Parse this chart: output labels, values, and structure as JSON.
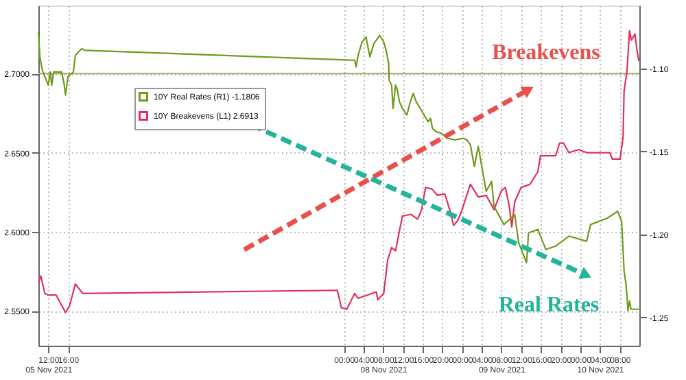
{
  "chart_data": {
    "type": "line",
    "xlim": [
      "2021-11-05T10:00",
      "2021-11-10T12:00"
    ],
    "xticks": [
      {
        "value": "2021-11-05T12:00",
        "label": "12:00\n05 Nov 2021"
      },
      {
        "value": "2021-11-05T16:00",
        "label": "16:00"
      },
      {
        "value": "2021-11-08T00:00",
        "label": "00:00"
      },
      {
        "value": "2021-11-08T04:00",
        "label": "04:00"
      },
      {
        "value": "2021-11-08T08:00",
        "label": "08:00\n08 Nov 2021"
      },
      {
        "value": "2021-11-08T12:00",
        "label": "12:00"
      },
      {
        "value": "2021-11-08T16:00",
        "label": "16:00"
      },
      {
        "value": "2021-11-08T20:00",
        "label": "20:00"
      },
      {
        "value": "2021-11-09T00:00",
        "label": "00:00"
      },
      {
        "value": "2021-11-09T04:00",
        "label": "04:00"
      },
      {
        "value": "2021-11-09T08:00",
        "label": "08:00\n09 Nov 2021"
      },
      {
        "value": "2021-11-09T12:00",
        "label": "12:00"
      },
      {
        "value": "2021-11-09T16:00",
        "label": "16:00"
      },
      {
        "value": "2021-11-09T20:00",
        "label": "20:00"
      },
      {
        "value": "2021-11-10T00:00",
        "label": "00:00"
      },
      {
        "value": "2021-11-10T04:00",
        "label": "04:00\n10 Nov 2021"
      },
      {
        "value": "2021-11-10T08:00",
        "label": "08:00"
      }
    ],
    "ylim": [
      2.528,
      2.743
    ],
    "yticks": [
      {
        "value": 2.55,
        "label": "2.5500"
      },
      {
        "value": 2.6,
        "label": "2.6000"
      },
      {
        "value": 2.65,
        "label": "2.6500"
      },
      {
        "value": 2.7,
        "label": "2.7000"
      }
    ],
    "y2lim": [
      -1.267,
      -1.062
    ],
    "y2ticks": [
      {
        "value": -1.25,
        "label": "-1.25"
      },
      {
        "value": -1.2,
        "label": "-1.20"
      },
      {
        "value": -1.15,
        "label": "-1.15"
      },
      {
        "value": -1.1,
        "label": "-1.10"
      }
    ],
    "grid": true,
    "legend": "top",
    "line_style": "solid",
    "marker": "none",
    "ref_lines": [
      {
        "axis": "y",
        "value": 2.7,
        "color": "#a8a860",
        "line_style": "solid"
      }
    ],
    "annotations": [
      "Breakevens",
      "Real Rates"
    ],
    "series": [
      {
        "name": "10Y Real Rates (R1) -1.1806",
        "color": "#6f9a1c",
        "axis": "y2",
        "x": [
          "2021-11-05T10:00",
          "2021-11-05T10:18",
          "2021-11-05T10:48",
          "2021-11-05T11:36",
          "2021-11-05T12:00",
          "2021-11-05T12:24",
          "2021-11-05T12:42",
          "2021-11-05T13:06",
          "2021-11-05T14:42",
          "2021-11-05T15:12",
          "2021-11-05T15:30",
          "2021-11-05T16:00",
          "2021-11-05T17:06",
          "2021-11-05T17:30",
          "2021-11-05T18:48",
          "2021-11-05T19:24",
          "2021-11-08T02:12",
          "2021-11-08T02:30",
          "2021-11-08T02:54",
          "2021-11-08T03:42",
          "2021-11-08T04:30",
          "2021-11-08T05:18",
          "2021-11-08T06:06",
          "2021-11-08T07:18",
          "2021-11-08T08:06",
          "2021-11-08T08:36",
          "2021-11-08T09:06",
          "2021-11-08T09:12",
          "2021-11-08T09:42",
          "2021-11-08T10:00",
          "2021-11-08T10:30",
          "2021-11-08T10:48",
          "2021-11-08T11:18",
          "2021-11-08T11:54",
          "2021-11-08T12:48",
          "2021-11-08T13:30",
          "2021-11-08T14:06",
          "2021-11-08T14:42",
          "2021-11-08T15:30",
          "2021-11-08T16:18",
          "2021-11-08T17:06",
          "2021-11-08T17:36",
          "2021-11-08T18:00",
          "2021-11-08T18:42",
          "2021-11-08T19:48",
          "2021-11-08T21:00",
          "2021-11-08T22:36",
          "2021-11-09T00:12",
          "2021-11-09T01:00",
          "2021-11-09T01:42",
          "2021-11-09T02:30",
          "2021-11-09T03:18",
          "2021-11-09T04:54",
          "2021-11-09T06:00",
          "2021-11-09T06:30",
          "2021-11-09T08:30",
          "2021-11-09T10:42",
          "2021-11-09T11:30",
          "2021-11-09T13:06",
          "2021-11-09T13:30",
          "2021-11-09T15:24",
          "2021-11-09T17:00",
          "2021-11-09T19:00",
          "2021-11-09T21:42",
          "2021-11-10T01:18",
          "2021-11-10T02:06",
          "2021-11-10T05:36",
          "2021-11-10T07:36",
          "2021-11-10T08:24",
          "2021-11-10T08:54",
          "2021-11-10T09:18",
          "2021-11-10T09:42",
          "2021-11-10T10:00",
          "2021-11-10T10:18",
          "2021-11-10T11:54"
        ],
        "values": [
          -1.078,
          -1.093,
          -1.101,
          -1.107,
          -1.11,
          -1.102,
          -1.11,
          -1.102,
          -1.102,
          -1.109,
          -1.116,
          -1.105,
          -1.102,
          -1.092,
          -1.088,
          -1.089,
          -1.095,
          -1.099,
          -1.092,
          -1.084,
          -1.081,
          -1.093,
          -1.085,
          -1.08,
          -1.084,
          -1.089,
          -1.097,
          -1.107,
          -1.11,
          -1.124,
          -1.11,
          -1.112,
          -1.12,
          -1.124,
          -1.128,
          -1.12,
          -1.115,
          -1.12,
          -1.124,
          -1.128,
          -1.132,
          -1.13,
          -1.136,
          -1.138,
          -1.139,
          -1.142,
          -1.143,
          -1.142,
          -1.143,
          -1.146,
          -1.159,
          -1.147,
          -1.174,
          -1.168,
          -1.183,
          -1.194,
          -1.188,
          -1.205,
          -1.217,
          -1.199,
          -1.197,
          -1.209,
          -1.207,
          -1.201,
          -1.204,
          -1.194,
          -1.19,
          -1.186,
          -1.192,
          -1.222,
          -1.23,
          -1.246,
          -1.24,
          -1.245,
          -1.245
        ]
      },
      {
        "name": "10Y Breakevens (L1) 2.6913",
        "color": "#e0305a",
        "axis": "y",
        "x": [
          "2021-11-05T10:00",
          "2021-11-05T10:30",
          "2021-11-05T11:18",
          "2021-11-05T12:00",
          "2021-11-05T13:36",
          "2021-11-05T15:30",
          "2021-11-05T16:18",
          "2021-11-05T17:30",
          "2021-11-05T19:00",
          "2021-11-07T22:42",
          "2021-11-07T23:30",
          "2021-11-08T00:36",
          "2021-11-08T02:12",
          "2021-11-08T02:54",
          "2021-11-08T04:48",
          "2021-11-08T06:36",
          "2021-11-08T06:54",
          "2021-11-08T08:06",
          "2021-11-08T08:54",
          "2021-11-08T09:42",
          "2021-11-08T10:30",
          "2021-11-08T11:54",
          "2021-11-08T13:36",
          "2021-11-08T15:00",
          "2021-11-08T15:48",
          "2021-11-08T16:36",
          "2021-11-08T17:54",
          "2021-11-08T19:00",
          "2021-11-08T20:30",
          "2021-11-08T21:30",
          "2021-11-08T22:18",
          "2021-11-08T23:06",
          "2021-11-08T23:48",
          "2021-11-09T01:42",
          "2021-11-09T03:18",
          "2021-11-09T04:54",
          "2021-11-09T06:30",
          "2021-11-09T08:00",
          "2021-11-09T08:48",
          "2021-11-09T09:36",
          "2021-11-09T10:06",
          "2021-11-09T10:42",
          "2021-11-09T12:00",
          "2021-11-09T13:48",
          "2021-11-09T15:24",
          "2021-11-09T15:54",
          "2021-11-09T19:00",
          "2021-11-09T19:48",
          "2021-11-09T20:36",
          "2021-11-09T21:42",
          "2021-11-09T23:42",
          "2021-11-10T01:18",
          "2021-11-10T06:00",
          "2021-11-10T06:30",
          "2021-11-10T08:06",
          "2021-11-10T08:42",
          "2021-11-10T08:54",
          "2021-11-10T09:30",
          "2021-11-10T10:00",
          "2021-11-10T10:24",
          "2021-11-10T11:06",
          "2021-11-10T11:36",
          "2021-11-10T11:54"
        ],
        "values": [
          2.568,
          2.572,
          2.561,
          2.56,
          2.56,
          2.549,
          2.553,
          2.567,
          2.561,
          2.563,
          2.552,
          2.551,
          2.561,
          2.558,
          2.56,
          2.562,
          2.557,
          2.561,
          2.582,
          2.59,
          2.588,
          2.61,
          2.611,
          2.608,
          2.614,
          2.628,
          2.627,
          2.623,
          2.624,
          2.614,
          2.604,
          2.607,
          2.612,
          2.63,
          2.622,
          2.623,
          2.614,
          2.626,
          2.628,
          2.616,
          2.603,
          2.619,
          2.628,
          2.63,
          2.638,
          2.648,
          2.648,
          2.656,
          2.656,
          2.65,
          2.652,
          2.65,
          2.65,
          2.646,
          2.646,
          2.66,
          2.689,
          2.702,
          2.727,
          2.721,
          2.725,
          2.713,
          2.708
        ]
      }
    ]
  }
}
